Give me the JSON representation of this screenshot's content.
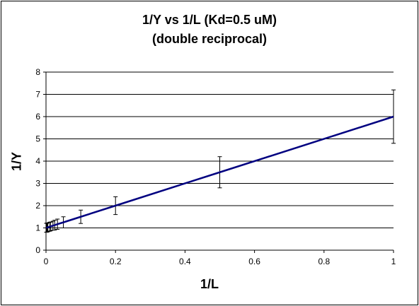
{
  "chart_data": {
    "type": "line",
    "title_line1": "1/Y vs 1/L (Kd=0.5 uM)",
    "title_line2": "(double reciprocal)",
    "xlabel": "1/L",
    "ylabel": "1/Y",
    "xlim": [
      0,
      1
    ],
    "ylim": [
      0,
      8
    ],
    "x_ticks": [
      "0",
      "0.2",
      "0.4",
      "0.6",
      "0.8",
      "1"
    ],
    "y_ticks": [
      "0",
      "1",
      "2",
      "3",
      "4",
      "5",
      "6",
      "7",
      "8"
    ],
    "grid": "horizontal",
    "line_color": "#000080",
    "series": [
      {
        "x": [
          1.0,
          0.5,
          0.2,
          0.1,
          0.05,
          0.033,
          0.025,
          0.02,
          0.0133,
          0.01,
          0.005,
          0.0033,
          0.002,
          0.001
        ],
        "y": [
          6.0,
          3.5,
          2.0,
          1.5,
          1.25,
          1.167,
          1.125,
          1.1,
          1.067,
          1.05,
          1.025,
          1.017,
          1.01,
          1.005
        ],
        "error": [
          1.2,
          0.7,
          0.4,
          0.3,
          0.25,
          0.23,
          0.22,
          0.2,
          0.2,
          0.2,
          0.2,
          0.2,
          0.2,
          0.2
        ]
      }
    ]
  }
}
